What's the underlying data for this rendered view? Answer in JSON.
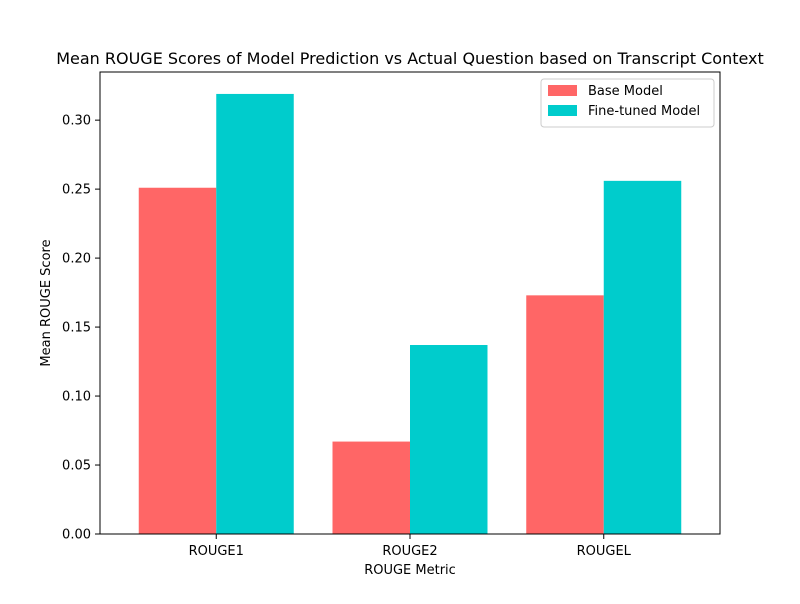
{
  "chart_data": {
    "type": "bar",
    "title": "Mean ROUGE Scores of Model Prediction vs Actual Question based on Transcript Context",
    "xlabel": "ROUGE Metric",
    "ylabel": "Mean ROUGE Score",
    "categories": [
      "ROUGE1",
      "ROUGE2",
      "ROUGEL"
    ],
    "series": [
      {
        "name": "Base Model",
        "values": [
          0.251,
          0.067,
          0.173
        ],
        "color": "#ff6666"
      },
      {
        "name": "Fine-tuned Model",
        "values": [
          0.319,
          0.137,
          0.256
        ],
        "color": "#00cccc"
      }
    ],
    "ylim": [
      0,
      0.3349
    ],
    "yticks": [
      0.0,
      0.05,
      0.1,
      0.15,
      0.2,
      0.25,
      0.3
    ],
    "ytick_labels": [
      "0.00",
      "0.05",
      "0.10",
      "0.15",
      "0.20",
      "0.25",
      "0.30"
    ],
    "grid": false,
    "legend_position": "top-right"
  }
}
